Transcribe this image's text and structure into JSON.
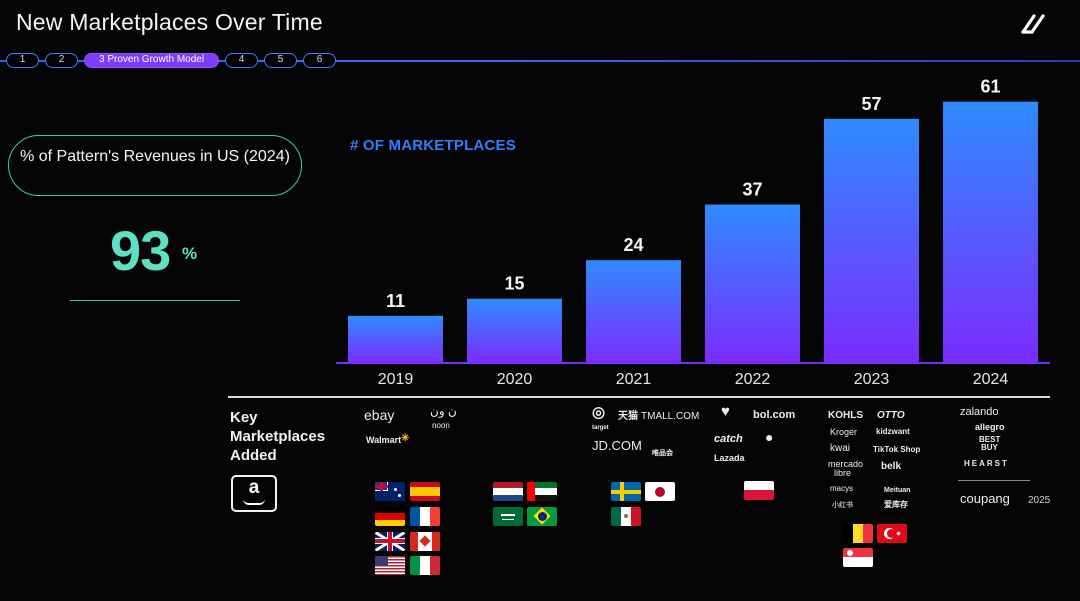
{
  "header": {
    "title": "New Marketplaces Over Time"
  },
  "steps": [
    {
      "label": "1"
    },
    {
      "label": "2"
    },
    {
      "label": "3 Proven Growth Model"
    },
    {
      "label": "4"
    },
    {
      "label": "5"
    },
    {
      "label": "6"
    }
  ],
  "kpi": {
    "label": "% of Pattern's Revenues in US (2024)",
    "value": "93",
    "unit": "%"
  },
  "colors": {
    "bar_top": "#2f8bff",
    "bar_bottom": "#7b2cff",
    "accent_teal": "#5ee0c3",
    "axis": "#7b2cff"
  },
  "chart_data": {
    "type": "bar",
    "title": "# OF MARKETPLACES",
    "categories": [
      "2019",
      "2020",
      "2021",
      "2022",
      "2023",
      "2024"
    ],
    "values": [
      11,
      15,
      24,
      37,
      57,
      61
    ],
    "ylim": [
      0,
      67
    ],
    "xlabel": "",
    "ylabel": ""
  },
  "table": {
    "label_line1": "Key",
    "label_line2": "Marketplaces",
    "label_line3": "Added",
    "amazon_letter": "a",
    "col2019": [
      "ebay",
      "ن ون",
      "noon",
      "Walmart"
    ],
    "col2021": [
      "target",
      "天猫",
      "TMALL.COM",
      "JD.COM",
      "唯品会"
    ],
    "col2022": [
      "bol.com",
      "catch",
      "Lazada"
    ],
    "col2023": [
      "KOHLS",
      "OTTO",
      "Kroger",
      "kidzwant",
      "kwai",
      "TikTok Shop",
      "mercado",
      "libre",
      "belk",
      "macys",
      "Meituan",
      "小红书",
      "爱库存"
    ],
    "col2024": [
      "zalando",
      "allegro",
      "BEST",
      "BUY",
      "HEARST",
      "coupang",
      "2025"
    ]
  },
  "flag_names": [
    "Australia",
    "Spain",
    "Germany",
    "France",
    "United Kingdom",
    "Canada",
    "United States",
    "Italy",
    "Netherlands",
    "UAE",
    "Saudi Arabia",
    "Brazil",
    "Sweden",
    "Japan",
    "Mexico",
    "Poland",
    "Belgium",
    "Turkey",
    "Singapore"
  ]
}
